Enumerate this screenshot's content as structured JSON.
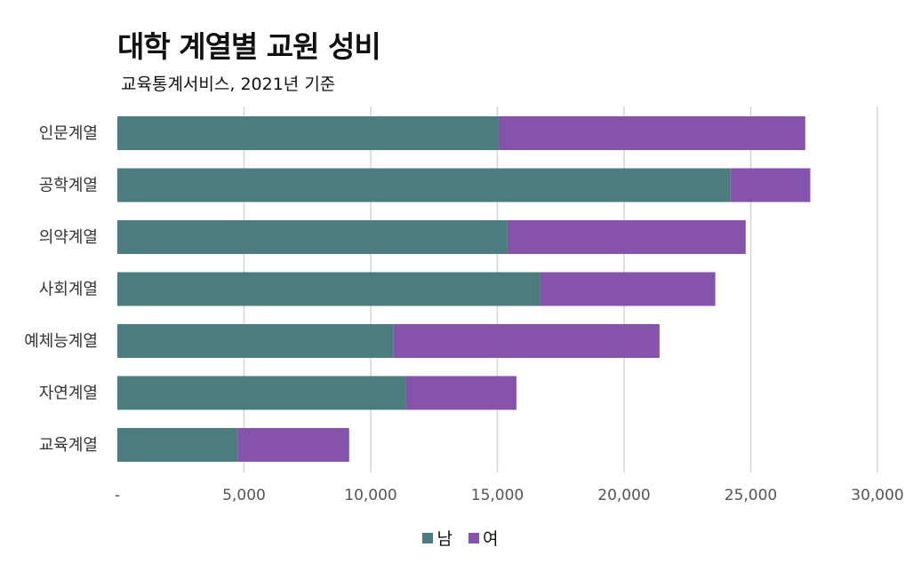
{
  "chart_data": {
    "type": "bar",
    "orientation": "horizontal",
    "stacked": true,
    "title": "대학 계열별 교원 성비",
    "subtitle": "교육통계서비스, 2021년 기준",
    "categories": [
      "인문계열",
      "공학계열",
      "의약계열",
      "사회계열",
      "예체능계열",
      "자연계열",
      "교육계열"
    ],
    "series": [
      {
        "name": "남",
        "color": "#4b7d7f",
        "values": [
          15050,
          24200,
          15400,
          16700,
          10900,
          11400,
          4750
        ]
      },
      {
        "name": "여",
        "color": "#8553ab",
        "values": [
          12100,
          3150,
          9400,
          6900,
          10500,
          4350,
          4400
        ]
      }
    ],
    "xlim": [
      0,
      30000
    ],
    "xticks": [
      "-",
      "5,000",
      "10,000",
      "15,000",
      "20,000",
      "25,000",
      "30,000"
    ],
    "grid": true,
    "legend_position": "bottom"
  }
}
